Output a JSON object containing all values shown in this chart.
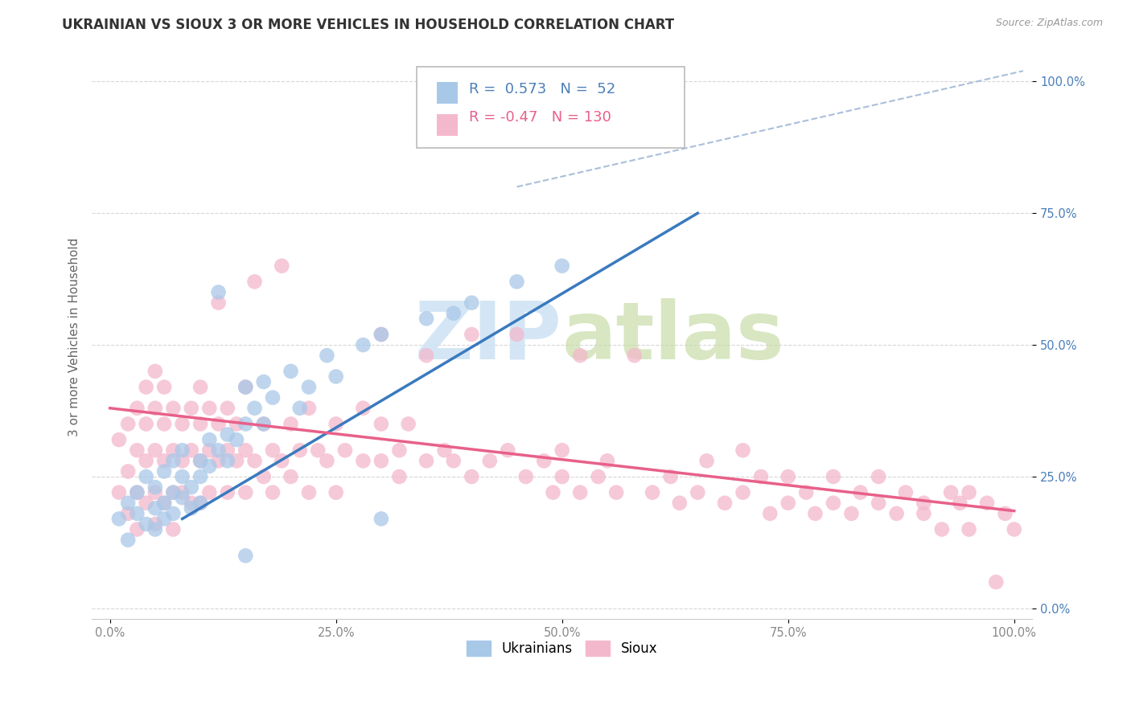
{
  "title": "UKRAINIAN VS SIOUX 3 OR MORE VEHICLES IN HOUSEHOLD CORRELATION CHART",
  "source": "Source: ZipAtlas.com",
  "ylabel": "3 or more Vehicles in Household",
  "xlabel": "",
  "xlim": [
    -0.02,
    1.02
  ],
  "ylim": [
    -0.02,
    1.05
  ],
  "xticks": [
    0.0,
    0.25,
    0.5,
    0.75,
    1.0
  ],
  "yticks": [
    0.0,
    0.25,
    0.5,
    0.75,
    1.0
  ],
  "xticklabels": [
    "0.0%",
    "25.0%",
    "50.0%",
    "75.0%",
    "100.0%"
  ],
  "yticklabels": [
    "0.0%",
    "25.0%",
    "50.0%",
    "75.0%",
    "100.0%"
  ],
  "blue_R": 0.573,
  "blue_N": 52,
  "pink_R": -0.47,
  "pink_N": 130,
  "blue_color": "#a8c8e8",
  "pink_color": "#f4b8cc",
  "blue_line_color": "#3a7abf",
  "pink_line_color": "#e8608a",
  "watermark_color": "#d0e4f4",
  "legend_labels": [
    "Ukrainians",
    "Sioux"
  ],
  "blue_scatter": [
    [
      0.01,
      0.17
    ],
    [
      0.02,
      0.2
    ],
    [
      0.02,
      0.13
    ],
    [
      0.03,
      0.18
    ],
    [
      0.03,
      0.22
    ],
    [
      0.04,
      0.16
    ],
    [
      0.04,
      0.25
    ],
    [
      0.05,
      0.19
    ],
    [
      0.05,
      0.23
    ],
    [
      0.05,
      0.15
    ],
    [
      0.06,
      0.2
    ],
    [
      0.06,
      0.26
    ],
    [
      0.06,
      0.17
    ],
    [
      0.07,
      0.22
    ],
    [
      0.07,
      0.18
    ],
    [
      0.07,
      0.28
    ],
    [
      0.08,
      0.21
    ],
    [
      0.08,
      0.25
    ],
    [
      0.08,
      0.3
    ],
    [
      0.09,
      0.23
    ],
    [
      0.09,
      0.19
    ],
    [
      0.1,
      0.25
    ],
    [
      0.1,
      0.2
    ],
    [
      0.1,
      0.28
    ],
    [
      0.11,
      0.27
    ],
    [
      0.11,
      0.32
    ],
    [
      0.12,
      0.3
    ],
    [
      0.12,
      0.6
    ],
    [
      0.13,
      0.28
    ],
    [
      0.13,
      0.33
    ],
    [
      0.14,
      0.32
    ],
    [
      0.15,
      0.35
    ],
    [
      0.15,
      0.42
    ],
    [
      0.16,
      0.38
    ],
    [
      0.17,
      0.43
    ],
    [
      0.17,
      0.35
    ],
    [
      0.18,
      0.4
    ],
    [
      0.2,
      0.45
    ],
    [
      0.21,
      0.38
    ],
    [
      0.22,
      0.42
    ],
    [
      0.24,
      0.48
    ],
    [
      0.25,
      0.44
    ],
    [
      0.28,
      0.5
    ],
    [
      0.3,
      0.52
    ],
    [
      0.35,
      0.55
    ],
    [
      0.38,
      0.56
    ],
    [
      0.4,
      0.58
    ],
    [
      0.15,
      0.1
    ],
    [
      0.45,
      0.62
    ],
    [
      0.5,
      0.65
    ],
    [
      0.3,
      0.17
    ],
    [
      0.57,
      0.97
    ]
  ],
  "pink_scatter": [
    [
      0.01,
      0.32
    ],
    [
      0.01,
      0.22
    ],
    [
      0.02,
      0.35
    ],
    [
      0.02,
      0.26
    ],
    [
      0.02,
      0.18
    ],
    [
      0.03,
      0.3
    ],
    [
      0.03,
      0.22
    ],
    [
      0.03,
      0.38
    ],
    [
      0.03,
      0.15
    ],
    [
      0.04,
      0.28
    ],
    [
      0.04,
      0.35
    ],
    [
      0.04,
      0.2
    ],
    [
      0.04,
      0.42
    ],
    [
      0.05,
      0.3
    ],
    [
      0.05,
      0.22
    ],
    [
      0.05,
      0.38
    ],
    [
      0.05,
      0.16
    ],
    [
      0.05,
      0.45
    ],
    [
      0.06,
      0.28
    ],
    [
      0.06,
      0.35
    ],
    [
      0.06,
      0.2
    ],
    [
      0.06,
      0.42
    ],
    [
      0.07,
      0.3
    ],
    [
      0.07,
      0.22
    ],
    [
      0.07,
      0.38
    ],
    [
      0.07,
      0.15
    ],
    [
      0.08,
      0.28
    ],
    [
      0.08,
      0.35
    ],
    [
      0.08,
      0.22
    ],
    [
      0.09,
      0.3
    ],
    [
      0.09,
      0.38
    ],
    [
      0.09,
      0.2
    ],
    [
      0.1,
      0.28
    ],
    [
      0.1,
      0.35
    ],
    [
      0.1,
      0.42
    ],
    [
      0.1,
      0.2
    ],
    [
      0.11,
      0.3
    ],
    [
      0.11,
      0.22
    ],
    [
      0.11,
      0.38
    ],
    [
      0.12,
      0.58
    ],
    [
      0.12,
      0.28
    ],
    [
      0.12,
      0.35
    ],
    [
      0.13,
      0.3
    ],
    [
      0.13,
      0.22
    ],
    [
      0.13,
      0.38
    ],
    [
      0.14,
      0.28
    ],
    [
      0.14,
      0.35
    ],
    [
      0.15,
      0.3
    ],
    [
      0.15,
      0.42
    ],
    [
      0.15,
      0.22
    ],
    [
      0.16,
      0.62
    ],
    [
      0.16,
      0.28
    ],
    [
      0.17,
      0.35
    ],
    [
      0.17,
      0.25
    ],
    [
      0.18,
      0.3
    ],
    [
      0.18,
      0.22
    ],
    [
      0.19,
      0.65
    ],
    [
      0.19,
      0.28
    ],
    [
      0.2,
      0.35
    ],
    [
      0.2,
      0.25
    ],
    [
      0.21,
      0.3
    ],
    [
      0.22,
      0.38
    ],
    [
      0.22,
      0.22
    ],
    [
      0.23,
      0.3
    ],
    [
      0.24,
      0.28
    ],
    [
      0.25,
      0.35
    ],
    [
      0.25,
      0.22
    ],
    [
      0.26,
      0.3
    ],
    [
      0.28,
      0.28
    ],
    [
      0.28,
      0.38
    ],
    [
      0.3,
      0.28
    ],
    [
      0.3,
      0.35
    ],
    [
      0.3,
      0.52
    ],
    [
      0.32,
      0.3
    ],
    [
      0.32,
      0.25
    ],
    [
      0.33,
      0.35
    ],
    [
      0.35,
      0.28
    ],
    [
      0.35,
      0.48
    ],
    [
      0.37,
      0.3
    ],
    [
      0.38,
      0.28
    ],
    [
      0.4,
      0.52
    ],
    [
      0.4,
      0.25
    ],
    [
      0.42,
      0.28
    ],
    [
      0.44,
      0.3
    ],
    [
      0.45,
      0.52
    ],
    [
      0.46,
      0.25
    ],
    [
      0.48,
      0.28
    ],
    [
      0.49,
      0.22
    ],
    [
      0.5,
      0.25
    ],
    [
      0.5,
      0.3
    ],
    [
      0.52,
      0.48
    ],
    [
      0.52,
      0.22
    ],
    [
      0.54,
      0.25
    ],
    [
      0.55,
      0.28
    ],
    [
      0.56,
      0.22
    ],
    [
      0.58,
      0.48
    ],
    [
      0.6,
      0.22
    ],
    [
      0.62,
      0.25
    ],
    [
      0.63,
      0.2
    ],
    [
      0.65,
      0.22
    ],
    [
      0.66,
      0.28
    ],
    [
      0.68,
      0.2
    ],
    [
      0.7,
      0.22
    ],
    [
      0.7,
      0.3
    ],
    [
      0.72,
      0.25
    ],
    [
      0.73,
      0.18
    ],
    [
      0.75,
      0.2
    ],
    [
      0.75,
      0.25
    ],
    [
      0.77,
      0.22
    ],
    [
      0.78,
      0.18
    ],
    [
      0.8,
      0.2
    ],
    [
      0.8,
      0.25
    ],
    [
      0.82,
      0.18
    ],
    [
      0.83,
      0.22
    ],
    [
      0.85,
      0.2
    ],
    [
      0.85,
      0.25
    ],
    [
      0.87,
      0.18
    ],
    [
      0.88,
      0.22
    ],
    [
      0.9,
      0.18
    ],
    [
      0.9,
      0.2
    ],
    [
      0.92,
      0.15
    ],
    [
      0.93,
      0.22
    ],
    [
      0.94,
      0.2
    ],
    [
      0.95,
      0.15
    ],
    [
      0.95,
      0.22
    ],
    [
      0.97,
      0.2
    ],
    [
      0.98,
      0.05
    ],
    [
      0.99,
      0.18
    ],
    [
      1.0,
      0.15
    ]
  ],
  "blue_line_x": [
    0.08,
    0.65
  ],
  "blue_line_y": [
    0.17,
    0.75
  ],
  "pink_line_x": [
    0.0,
    1.0
  ],
  "pink_line_y": [
    0.38,
    0.185
  ],
  "dashed_line_x": [
    0.45,
    1.01
  ],
  "dashed_line_y": [
    0.8,
    1.02
  ],
  "background_color": "#ffffff",
  "grid_color": "#cccccc",
  "title_fontsize": 12,
  "axis_label_fontsize": 11,
  "tick_fontsize": 10.5,
  "legend_fontsize": 13,
  "scatter_size": 180
}
